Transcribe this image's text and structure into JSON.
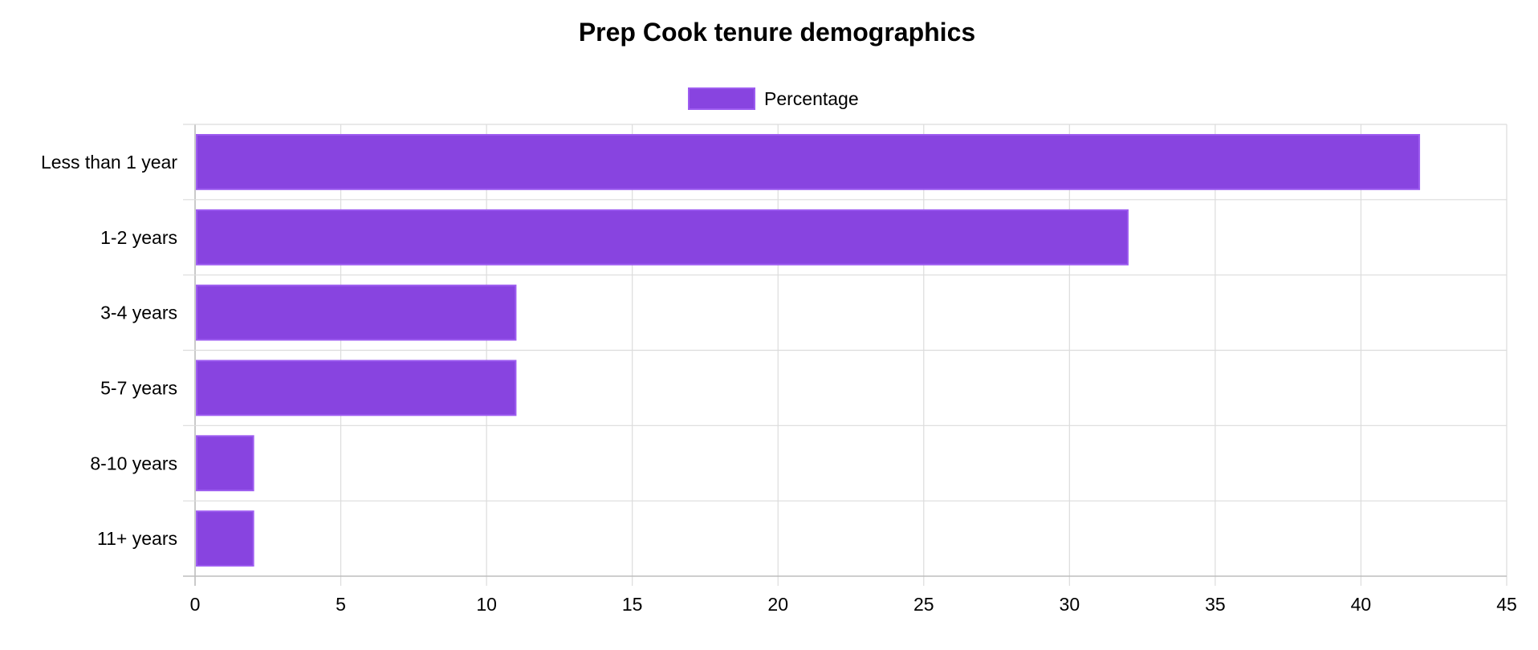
{
  "chart_data": {
    "type": "bar",
    "orientation": "horizontal",
    "title": "Prep Cook tenure demographics",
    "categories": [
      "Less than 1 year",
      "1-2 years",
      "3-4 years",
      "5-7 years",
      "8-10 years",
      "11+ years"
    ],
    "series": [
      {
        "name": "Percentage",
        "values": [
          42,
          32,
          11,
          11,
          2,
          2
        ],
        "color": "#8844e0",
        "border_color": "#9d5cf0"
      }
    ],
    "xlim": [
      0,
      45
    ],
    "xticks": [
      0,
      5,
      10,
      15,
      20,
      25,
      30,
      35,
      40,
      45
    ],
    "xlabel": "",
    "ylabel": "",
    "grid": true,
    "legend_position": "top-center"
  }
}
